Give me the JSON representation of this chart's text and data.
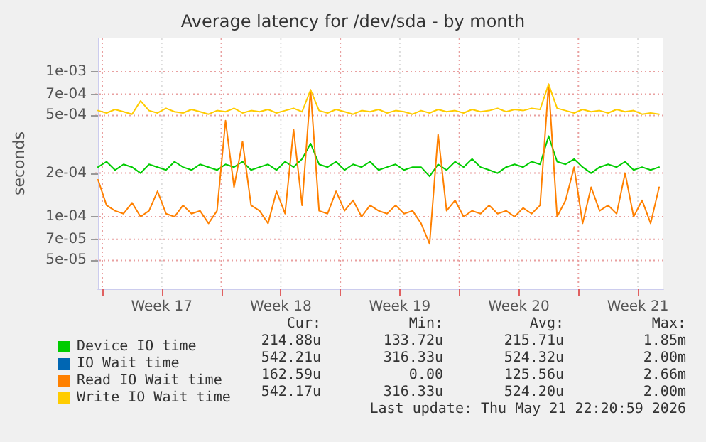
{
  "chart_data": {
    "type": "line",
    "title": "Average latency for /dev/sda - by month",
    "ylabel": "seconds",
    "log": "y",
    "grid": true,
    "legend": "bottom",
    "marker": "none",
    "line_style": "solid",
    "ylim": [
      3.2e-05,
      0.0017
    ],
    "yticks": [
      {
        "value": 5e-05,
        "label": "5e-05"
      },
      {
        "value": 7e-05,
        "label": "7e-05"
      },
      {
        "value": 0.0001,
        "label": "1e-04"
      },
      {
        "value": 0.0002,
        "label": "2e-04"
      },
      {
        "value": 0.0005,
        "label": "5e-04"
      },
      {
        "value": 0.0007,
        "label": "7e-04"
      },
      {
        "value": 0.001,
        "label": "1e-03"
      }
    ],
    "xlim": [
      "2026-04-19T18:00",
      "2026-05-23T00:00"
    ],
    "xticks": [
      {
        "value": "2026-04-20T00:00",
        "label": null
      },
      {
        "value": "2026-04-23T12:00",
        "label": "Week 17"
      },
      {
        "value": "2026-04-27T00:00",
        "label": null
      },
      {
        "value": "2026-04-30T12:00",
        "label": "Week 18"
      },
      {
        "value": "2026-05-04T00:00",
        "label": null
      },
      {
        "value": "2026-05-07T12:00",
        "label": "Week 19"
      },
      {
        "value": "2026-05-11T00:00",
        "label": null
      },
      {
        "value": "2026-05-14T12:00",
        "label": "Week 20"
      },
      {
        "value": "2026-05-18T00:00",
        "label": null
      },
      {
        "value": "2026-05-21T12:00",
        "label": "Week 21"
      }
    ],
    "x": [
      "2026-04-19T18:00",
      "2026-04-20T06:00",
      "2026-04-20T18:00",
      "2026-04-21T06:00",
      "2026-04-21T18:00",
      "2026-04-22T06:00",
      "2026-04-22T18:00",
      "2026-04-23T06:00",
      "2026-04-23T18:00",
      "2026-04-24T06:00",
      "2026-04-24T18:00",
      "2026-04-25T06:00",
      "2026-04-25T18:00",
      "2026-04-26T06:00",
      "2026-04-26T18:00",
      "2026-04-27T06:00",
      "2026-04-27T18:00",
      "2026-04-28T06:00",
      "2026-04-28T18:00",
      "2026-04-29T06:00",
      "2026-04-29T18:00",
      "2026-04-30T06:00",
      "2026-04-30T18:00",
      "2026-05-01T06:00",
      "2026-05-01T18:00",
      "2026-05-02T06:00",
      "2026-05-02T18:00",
      "2026-05-03T06:00",
      "2026-05-03T18:00",
      "2026-05-04T06:00",
      "2026-05-04T18:00",
      "2026-05-05T06:00",
      "2026-05-05T18:00",
      "2026-05-06T06:00",
      "2026-05-06T18:00",
      "2026-05-07T06:00",
      "2026-05-07T18:00",
      "2026-05-08T06:00",
      "2026-05-08T18:00",
      "2026-05-09T06:00",
      "2026-05-09T18:00",
      "2026-05-10T06:00",
      "2026-05-10T18:00",
      "2026-05-11T06:00",
      "2026-05-11T18:00",
      "2026-05-12T06:00",
      "2026-05-12T18:00",
      "2026-05-13T06:00",
      "2026-05-13T18:00",
      "2026-05-14T06:00",
      "2026-05-14T18:00",
      "2026-05-15T06:00",
      "2026-05-15T18:00",
      "2026-05-16T06:00",
      "2026-05-16T18:00",
      "2026-05-17T06:00",
      "2026-05-17T18:00",
      "2026-05-18T06:00",
      "2026-05-18T18:00",
      "2026-05-19T06:00",
      "2026-05-19T18:00",
      "2026-05-20T06:00",
      "2026-05-20T18:00",
      "2026-05-21T06:00",
      "2026-05-21T18:00",
      "2026-05-22T06:00",
      "2026-05-22T18:00"
    ],
    "series": [
      {
        "name": "Device IO time",
        "color": "#00cc00",
        "values": [
          0.00022,
          0.00024,
          0.00021,
          0.00023,
          0.00022,
          0.0002,
          0.00023,
          0.00022,
          0.00021,
          0.00024,
          0.00022,
          0.00021,
          0.00023,
          0.00022,
          0.00021,
          0.00023,
          0.00022,
          0.00024,
          0.00021,
          0.00022,
          0.00023,
          0.00021,
          0.00024,
          0.00022,
          0.00025,
          0.00032,
          0.00023,
          0.00022,
          0.00024,
          0.00021,
          0.00023,
          0.00022,
          0.00024,
          0.00021,
          0.00022,
          0.00023,
          0.00021,
          0.00022,
          0.00022,
          0.00019,
          0.00023,
          0.00021,
          0.00024,
          0.00022,
          0.00025,
          0.00022,
          0.00021,
          0.0002,
          0.00022,
          0.00023,
          0.00022,
          0.00024,
          0.00023,
          0.00036,
          0.00024,
          0.00023,
          0.00025,
          0.00022,
          0.0002,
          0.00022,
          0.00023,
          0.00022,
          0.00024,
          0.00021,
          0.00022,
          0.00021,
          0.00022
        ]
      },
      {
        "name": "IO Wait time",
        "color": "#0066b3",
        "values": [
          null,
          null,
          null,
          null,
          null,
          null,
          null,
          null,
          null,
          null,
          null,
          null,
          null,
          null,
          null,
          null,
          null,
          null,
          null,
          null,
          null,
          null,
          null,
          null,
          null,
          null,
          null,
          null,
          null,
          null,
          null,
          null,
          null,
          null,
          null,
          null,
          null,
          null,
          null,
          null,
          null,
          null,
          null,
          null,
          null,
          null,
          null,
          null,
          null,
          null,
          null,
          null,
          null,
          null,
          null,
          null,
          null,
          null,
          null,
          null,
          null,
          null,
          null,
          null,
          null,
          null,
          null
        ]
      },
      {
        "name": "Read IO Wait time",
        "color": "#ff8000",
        "values": [
          0.00018,
          0.00012,
          0.00011,
          0.000105,
          0.000125,
          0.0001,
          0.00011,
          0.00015,
          0.000105,
          0.0001,
          0.00012,
          0.000105,
          0.00011,
          9e-05,
          0.00011,
          0.00046,
          0.00016,
          0.00033,
          0.00012,
          0.00011,
          9e-05,
          0.00015,
          0.000105,
          0.0004,
          0.00012,
          0.00075,
          0.00011,
          0.000105,
          0.00015,
          0.00011,
          0.00013,
          0.0001,
          0.00012,
          0.00011,
          0.000105,
          0.00012,
          0.000105,
          0.00011,
          9e-05,
          6.5e-05,
          0.00037,
          0.00011,
          0.00013,
          0.0001,
          0.00011,
          0.000105,
          0.00012,
          0.000105,
          0.00011,
          0.0001,
          0.000115,
          0.000105,
          0.00012,
          0.00082,
          0.0001,
          0.00013,
          0.00022,
          9e-05,
          0.00016,
          0.00011,
          0.00012,
          0.000105,
          0.0002,
          0.0001,
          0.00013,
          9e-05,
          0.00016
        ]
      },
      {
        "name": "Write IO Wait time",
        "color": "#ffcc00",
        "values": [
          0.00054,
          0.00052,
          0.00055,
          0.00053,
          0.00051,
          0.00063,
          0.00054,
          0.00052,
          0.00056,
          0.00053,
          0.00052,
          0.00055,
          0.00053,
          0.00051,
          0.00054,
          0.00053,
          0.00056,
          0.00052,
          0.00054,
          0.00053,
          0.00055,
          0.00052,
          0.00054,
          0.00056,
          0.00053,
          0.00075,
          0.00054,
          0.00052,
          0.00055,
          0.00053,
          0.00051,
          0.00054,
          0.00053,
          0.00055,
          0.00052,
          0.00054,
          0.00053,
          0.00051,
          0.00054,
          0.00052,
          0.00055,
          0.00053,
          0.00054,
          0.00052,
          0.00055,
          0.00053,
          0.00054,
          0.00056,
          0.00053,
          0.00055,
          0.00054,
          0.00056,
          0.00055,
          0.00082,
          0.00056,
          0.00054,
          0.00052,
          0.00055,
          0.00053,
          0.00054,
          0.00052,
          0.00055,
          0.00053,
          0.00054,
          0.00051,
          0.00052,
          0.00051
        ]
      }
    ],
    "annotations": [
      "Cur:",
      "Min:",
      "Avg:",
      "Max:",
      "214.88u",
      "133.72u",
      "215.71u",
      "1.85m",
      "542.21u",
      "316.33u",
      "524.32u",
      "2.00m",
      "162.59u",
      "0.00",
      "125.56u",
      "2.66m",
      "542.17u",
      "316.33u",
      "524.20u",
      "2.00m",
      "Last update: Thu May 21 22:20:59 2026"
    ]
  }
}
